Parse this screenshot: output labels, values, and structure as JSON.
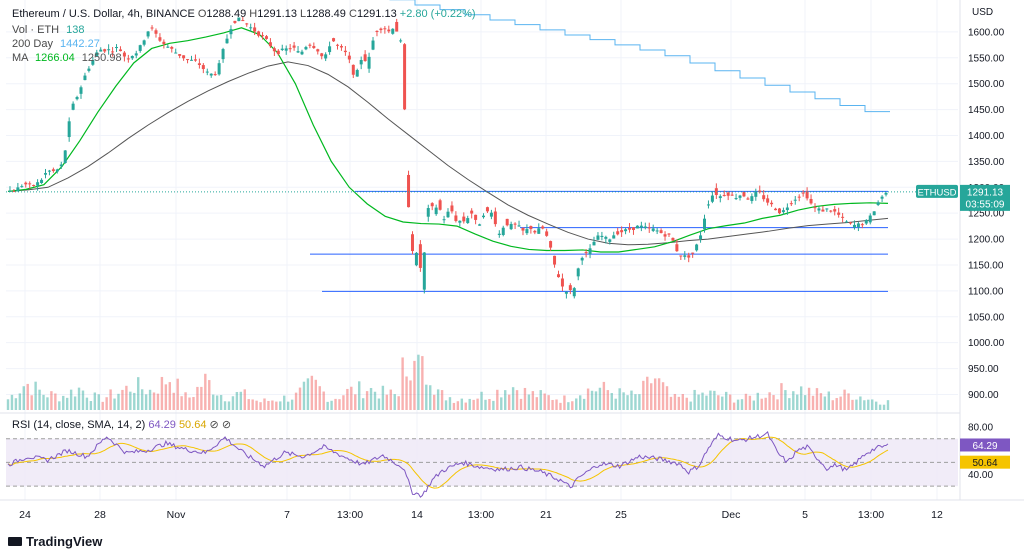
{
  "header": {
    "title": "Ethereum / U.S. Dollar, 4h, BINANCE",
    "ohlc": {
      "o_label": "O",
      "o": "1288.49",
      "h_label": "H",
      "h": "1291.13",
      "l_label": "L",
      "l": "1288.49",
      "c_label": "C",
      "c": "1291.13",
      "change": "+2.80 (+0.22%)"
    },
    "vol_label": "Vol · ETH",
    "vol_value": "138",
    "ma200_label": "200 Day",
    "ma200_value": "1442.27",
    "ma_label": "MA",
    "ma_value1": "1266.04",
    "ma_value2": "1250.98"
  },
  "price_tag": {
    "symbol": "ETHUSD",
    "price": "1291.13",
    "countdown": "03:55:09"
  },
  "rsi_legend": {
    "label": "RSI (14, close, SMA, 14, 2)",
    "rsi": "64.29",
    "sma": "50.64"
  },
  "brand": {
    "name": "TradingView"
  },
  "colors": {
    "up": "#26a69a",
    "down": "#ef5350",
    "ma_green": "#00b81f",
    "ma_gray": "#555555",
    "ma200": "#5ab4f0",
    "level": "#2962ff",
    "rsi": "#7e57c2",
    "rsi_sma": "#f5c400",
    "tag": "#26a69a"
  },
  "chart_data": {
    "type": "candlestick",
    "symbol": "ETHUSD",
    "timeframe": "4h",
    "exchange": "BINANCE",
    "currency": "USD",
    "ylim": [
      870,
      1650
    ],
    "y_ticks": [
      900,
      950,
      1000,
      1050,
      1100,
      1150,
      1200,
      1250,
      1300,
      1350,
      1400,
      1450,
      1500,
      1550,
      1600
    ],
    "x_ticks": [
      "24",
      "28",
      "Nov",
      "7",
      "13:00",
      "14",
      "13:00",
      "21",
      "25",
      "Dec",
      "5",
      "13:00",
      "12"
    ],
    "last_price": 1291.13,
    "keypoints": [
      [
        0,
        1292
      ],
      [
        4,
        1295
      ],
      [
        8,
        1307
      ],
      [
        12,
        1302
      ],
      [
        16,
        1310
      ],
      [
        20,
        1332
      ],
      [
        24,
        1330
      ],
      [
        28,
        1346
      ],
      [
        32,
        1450
      ],
      [
        36,
        1484
      ],
      [
        40,
        1525
      ],
      [
        46,
        1566
      ],
      [
        52,
        1565
      ],
      [
        56,
        1570
      ],
      [
        60,
        1548
      ],
      [
        66,
        1563
      ],
      [
        72,
        1610
      ],
      [
        78,
        1580
      ],
      [
        84,
        1563
      ],
      [
        90,
        1548
      ],
      [
        96,
        1541
      ],
      [
        102,
        1517
      ],
      [
        106,
        1522
      ],
      [
        110,
        1577
      ],
      [
        114,
        1620
      ],
      [
        118,
        1625
      ],
      [
        124,
        1605
      ],
      [
        130,
        1588
      ],
      [
        136,
        1560
      ],
      [
        140,
        1565
      ],
      [
        144,
        1571
      ],
      [
        148,
        1557
      ],
      [
        152,
        1578
      ],
      [
        156,
        1570
      ],
      [
        158,
        1560
      ],
      [
        160,
        1546
      ],
      [
        162,
        1560
      ],
      [
        164,
        1590
      ],
      [
        166,
        1574
      ],
      [
        168,
        1571
      ],
      [
        172,
        1555
      ],
      [
        176,
        1510
      ],
      [
        180,
        1560
      ],
      [
        182,
        1532
      ],
      [
        186,
        1600
      ],
      [
        190,
        1610
      ],
      [
        194,
        1598
      ],
      [
        196,
        1620
      ],
      [
        198,
        1585
      ],
      [
        200,
        1575
      ],
      [
        202,
        1320
      ],
      [
        204,
        1210
      ],
      [
        206,
        1150
      ],
      [
        208,
        1190
      ],
      [
        210,
        1100
      ],
      [
        212,
        1245
      ],
      [
        214,
        1268
      ],
      [
        216,
        1252
      ],
      [
        218,
        1272
      ],
      [
        220,
        1240
      ],
      [
        222,
        1240
      ],
      [
        224,
        1262
      ],
      [
        226,
        1245
      ],
      [
        228,
        1230
      ],
      [
        230,
        1240
      ],
      [
        232,
        1230
      ],
      [
        234,
        1255
      ],
      [
        236,
        1245
      ],
      [
        238,
        1222
      ],
      [
        240,
        1240
      ],
      [
        242,
        1258
      ],
      [
        244,
        1245
      ],
      [
        246,
        1255
      ],
      [
        248,
        1210
      ],
      [
        250,
        1210
      ],
      [
        252,
        1238
      ],
      [
        254,
        1221
      ],
      [
        256,
        1230
      ],
      [
        258,
        1225
      ],
      [
        260,
        1220
      ],
      [
        262,
        1210
      ],
      [
        264,
        1225
      ],
      [
        266,
        1218
      ],
      [
        268,
        1210
      ],
      [
        270,
        1225
      ],
      [
        272,
        1215
      ],
      [
        274,
        1195
      ],
      [
        276,
        1165
      ],
      [
        278,
        1135
      ],
      [
        280,
        1122
      ],
      [
        282,
        1095
      ],
      [
        284,
        1108
      ],
      [
        286,
        1090
      ],
      [
        288,
        1125
      ],
      [
        290,
        1160
      ],
      [
        292,
        1175
      ],
      [
        294,
        1168
      ],
      [
        296,
        1190
      ],
      [
        300,
        1208
      ],
      [
        304,
        1198
      ],
      [
        308,
        1212
      ],
      [
        312,
        1215
      ],
      [
        316,
        1220
      ],
      [
        320,
        1225
      ],
      [
        324,
        1220
      ],
      [
        328,
        1218
      ],
      [
        332,
        1210
      ],
      [
        336,
        1205
      ],
      [
        340,
        1170
      ],
      [
        344,
        1165
      ],
      [
        348,
        1175
      ],
      [
        350,
        1200
      ],
      [
        352,
        1218
      ],
      [
        354,
        1265
      ],
      [
        356,
        1275
      ],
      [
        358,
        1295
      ],
      [
        360,
        1280
      ],
      [
        364,
        1290
      ],
      [
        368,
        1280
      ],
      [
        372,
        1287
      ],
      [
        376,
        1276
      ],
      [
        380,
        1292
      ],
      [
        384,
        1275
      ],
      [
        388,
        1262
      ],
      [
        392,
        1250
      ],
      [
        396,
        1268
      ],
      [
        400,
        1282
      ],
      [
        404,
        1290
      ],
      [
        406,
        1275
      ],
      [
        408,
        1262
      ],
      [
        412,
        1255
      ],
      [
        416,
        1258
      ],
      [
        420,
        1250
      ],
      [
        424,
        1235
      ],
      [
        428,
        1226
      ],
      [
        432,
        1228
      ],
      [
        436,
        1235
      ],
      [
        438,
        1250
      ],
      [
        440,
        1262
      ],
      [
        442,
        1280
      ],
      [
        444,
        1285
      ],
      [
        446,
        1291.13
      ]
    ],
    "levels": [
      1292,
      1222,
      1171,
      1099
    ],
    "ma200_day": [
      1700,
      1699,
      1696,
      1690,
      1682,
      1672,
      1662,
      1652,
      1643,
      1633,
      1623,
      1614,
      1604,
      1594,
      1585,
      1575,
      1565,
      1554,
      1540,
      1525,
      1511,
      1497,
      1484,
      1471,
      1458,
      1446
    ],
    "ma_green": [
      1292,
      1296,
      1305,
      1340,
      1390,
      1445,
      1495,
      1540,
      1568,
      1578,
      1583,
      1590,
      1598,
      1608,
      1595,
      1560,
      1500,
      1420,
      1350,
      1300,
      1268,
      1244,
      1233,
      1230,
      1229,
      1225,
      1210,
      1196,
      1186,
      1180,
      1178,
      1178,
      1179,
      1175,
      1175,
      1180,
      1185,
      1195,
      1208,
      1220,
      1226,
      1231,
      1240,
      1246,
      1256,
      1263,
      1267,
      1269,
      1270,
      1269
    ],
    "ma_gray": [
      1292,
      1295,
      1300,
      1318,
      1340,
      1366,
      1394,
      1420,
      1444,
      1466,
      1486,
      1504,
      1520,
      1534,
      1542,
      1535,
      1518,
      1494,
      1464,
      1432,
      1402,
      1372,
      1342,
      1315,
      1290,
      1266,
      1246,
      1229,
      1213,
      1200,
      1192,
      1189,
      1190,
      1193,
      1197,
      1200,
      1205,
      1210,
      1215,
      1221,
      1226,
      1229,
      1232,
      1236,
      1240
    ],
    "volume_scale": [
      20,
      50,
      30,
      25,
      40,
      20,
      30,
      45,
      35,
      60,
      20,
      55,
      25,
      30,
      15,
      20,
      25,
      50,
      20,
      35,
      40,
      30,
      25,
      20,
      30,
      20,
      25,
      30,
      45,
      30,
      25,
      20,
      35,
      40,
      30,
      25,
      60,
      20,
      25,
      30,
      25,
      20,
      30,
      35,
      40,
      30,
      25,
      30,
      20,
      15
    ],
    "rsi": {
      "ylim": [
        20,
        90
      ],
      "ticks": [
        40,
        80
      ],
      "overbought": 70,
      "oversold": 30,
      "last": 64.29,
      "sma_last": 50.64
    },
    "rsi_keypoints": [
      [
        0,
        48
      ],
      [
        10,
        55
      ],
      [
        20,
        52
      ],
      [
        30,
        60
      ],
      [
        40,
        55
      ],
      [
        50,
        72
      ],
      [
        60,
        58
      ],
      [
        70,
        60
      ],
      [
        80,
        66
      ],
      [
        90,
        61
      ],
      [
        100,
        58
      ],
      [
        110,
        71
      ],
      [
        120,
        57
      ],
      [
        130,
        47
      ],
      [
        140,
        58
      ],
      [
        150,
        55
      ],
      [
        160,
        63
      ],
      [
        170,
        55
      ],
      [
        180,
        48
      ],
      [
        190,
        56
      ],
      [
        200,
        46
      ],
      [
        205,
        25
      ],
      [
        210,
        22
      ],
      [
        215,
        35
      ],
      [
        220,
        43
      ],
      [
        230,
        50
      ],
      [
        240,
        46
      ],
      [
        250,
        44
      ],
      [
        260,
        46
      ],
      [
        270,
        42
      ],
      [
        280,
        35
      ],
      [
        285,
        29
      ],
      [
        290,
        38
      ],
      [
        300,
        49
      ],
      [
        310,
        47
      ],
      [
        320,
        55
      ],
      [
        330,
        53
      ],
      [
        340,
        49
      ],
      [
        345,
        42
      ],
      [
        350,
        47
      ],
      [
        355,
        62
      ],
      [
        360,
        73
      ],
      [
        370,
        68
      ],
      [
        380,
        72
      ],
      [
        385,
        74
      ],
      [
        390,
        58
      ],
      [
        395,
        50
      ],
      [
        400,
        60
      ],
      [
        405,
        63
      ],
      [
        410,
        54
      ],
      [
        415,
        45
      ],
      [
        420,
        48
      ],
      [
        425,
        43
      ],
      [
        430,
        50
      ],
      [
        435,
        58
      ],
      [
        440,
        62
      ],
      [
        446,
        64.29
      ]
    ]
  }
}
